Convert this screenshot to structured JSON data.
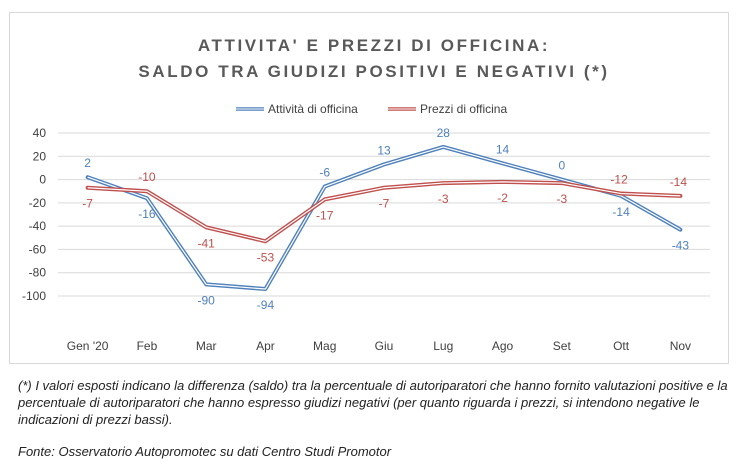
{
  "chart_data": {
    "type": "line",
    "title_line1": "ATTIVITA' E PREZZI DI OFFICINA:",
    "title_line2": "SALDO TRA GIUDIZI POSITIVI E NEGATIVI (*)",
    "categories": [
      "Gen '20",
      "Feb",
      "Mar",
      "Apr",
      "Mag",
      "Giu",
      "Lug",
      "Ago",
      "Set",
      "Ott",
      "Nov"
    ],
    "series": [
      {
        "name": "Attività di officina",
        "color": "#4f81bd",
        "values": [
          2,
          -16,
          -90,
          -94,
          -6,
          13,
          28,
          14,
          0,
          -14,
          -43
        ]
      },
      {
        "name": "Prezzi di officina",
        "color": "#c0504d",
        "values": [
          -7,
          -10,
          -41,
          -53,
          -17,
          -7,
          -3,
          -2,
          -3,
          -12,
          -14
        ]
      }
    ],
    "ylim": [
      -100,
      40
    ],
    "yticks": [
      40,
      20,
      0,
      -20,
      -40,
      -60,
      -80,
      -100
    ],
    "grid": true,
    "legend": "top-center"
  },
  "footnote": "(*) I valori esposti indicano la differenza (saldo) tra la percentuale di autoriparatori che hanno fornito valutazioni positive e la percentuale di autoriparatori che hanno espresso giudizi negativi (per quanto riguarda i prezzi, si intendono negative le indicazioni di prezzi bassi).",
  "source": "Fonte: Osservatorio Autopromotec su dati Centro Studi Promotor"
}
